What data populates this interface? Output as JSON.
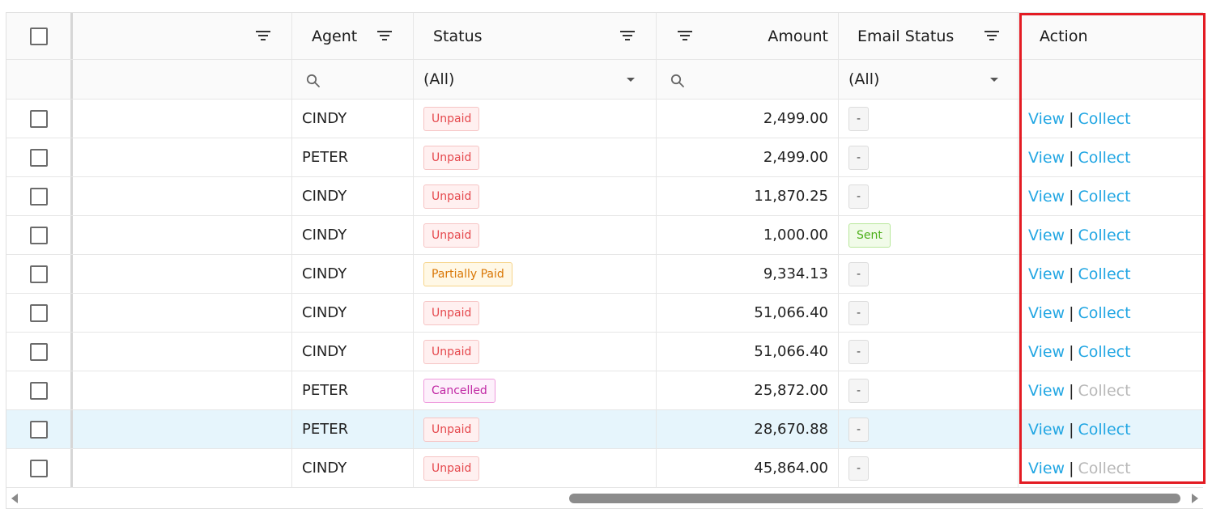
{
  "columns": {
    "agent": "Agent",
    "status": "Status",
    "amount": "Amount",
    "email_status": "Email Status",
    "action": "Action"
  },
  "filters": {
    "status_value": "(All)",
    "email_status_value": "(All)"
  },
  "actions": {
    "view": "View",
    "collect": "Collect",
    "separator": "|"
  },
  "rows": [
    {
      "agent": "CINDY",
      "status": "Unpaid",
      "status_type": "unpaid",
      "amount": "2,499.00",
      "email": "-",
      "email_type": "dash",
      "collect_enabled": true
    },
    {
      "agent": "PETER",
      "status": "Unpaid",
      "status_type": "unpaid",
      "amount": "2,499.00",
      "email": "-",
      "email_type": "dash",
      "collect_enabled": true
    },
    {
      "agent": "CINDY",
      "status": "Unpaid",
      "status_type": "unpaid",
      "amount": "11,870.25",
      "email": "-",
      "email_type": "dash",
      "collect_enabled": true
    },
    {
      "agent": "CINDY",
      "status": "Unpaid",
      "status_type": "unpaid",
      "amount": "1,000.00",
      "email": "Sent",
      "email_type": "sent",
      "collect_enabled": true
    },
    {
      "agent": "CINDY",
      "status": "Partially Paid",
      "status_type": "partial",
      "amount": "9,334.13",
      "email": "-",
      "email_type": "dash",
      "collect_enabled": true
    },
    {
      "agent": "CINDY",
      "status": "Unpaid",
      "status_type": "unpaid",
      "amount": "51,066.40",
      "email": "-",
      "email_type": "dash",
      "collect_enabled": true
    },
    {
      "agent": "CINDY",
      "status": "Unpaid",
      "status_type": "unpaid",
      "amount": "51,066.40",
      "email": "-",
      "email_type": "dash",
      "collect_enabled": true
    },
    {
      "agent": "PETER",
      "status": "Cancelled",
      "status_type": "cancelled",
      "amount": "25,872.00",
      "email": "-",
      "email_type": "dash",
      "collect_enabled": false
    },
    {
      "agent": "PETER",
      "status": "Unpaid",
      "status_type": "unpaid",
      "amount": "28,670.88",
      "email": "-",
      "email_type": "dash",
      "collect_enabled": true,
      "selected": true
    },
    {
      "agent": "CINDY",
      "status": "Unpaid",
      "status_type": "unpaid",
      "amount": "45,864.00",
      "email": "-",
      "email_type": "dash",
      "collect_enabled": false
    }
  ],
  "colors": {
    "link": "#21a6e3",
    "highlight_border": "#e31b23",
    "selected_row": "#e6f5fc"
  }
}
